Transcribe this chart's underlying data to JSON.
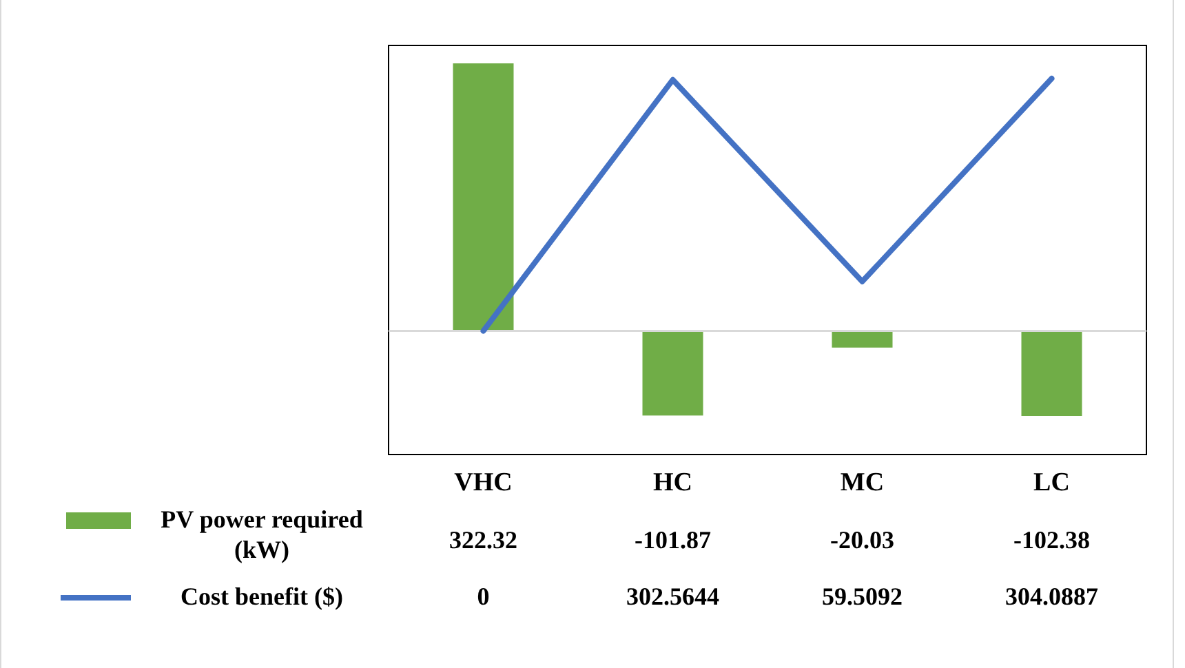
{
  "chart_data": {
    "type": "bar",
    "categories": [
      "VHC",
      "HC",
      "MC",
      "LC"
    ],
    "series": [
      {
        "name": "PV power required (kW)",
        "color": "#70ad47",
        "values": [
          322.32,
          -101.87,
          -20.03,
          -102.38
        ]
      },
      {
        "name": "Cost benefit ($)",
        "type": "line",
        "color": "#4472c4",
        "values": [
          0,
          302.5644,
          59.5092,
          304.0887
        ]
      }
    ],
    "data_labels": true,
    "legend": "bottom left",
    "marker": "none",
    "line_style": "solid"
  }
}
